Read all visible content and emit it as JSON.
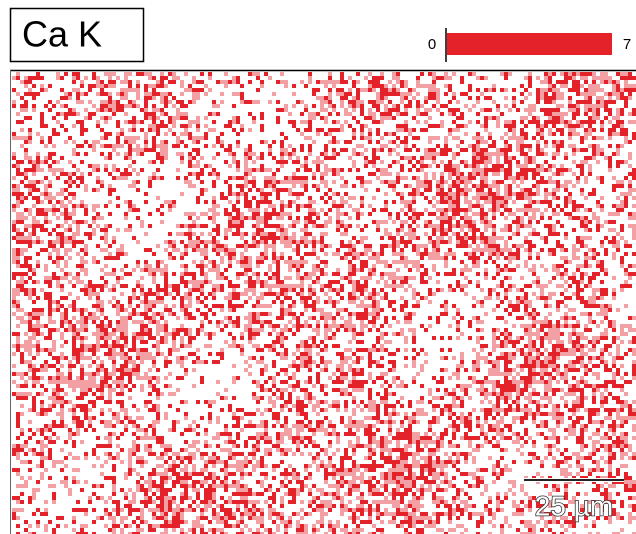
{
  "label": "Ca K",
  "color_scale": {
    "min": 0,
    "max": 7
  },
  "scale_bar": "25 µm"
}
